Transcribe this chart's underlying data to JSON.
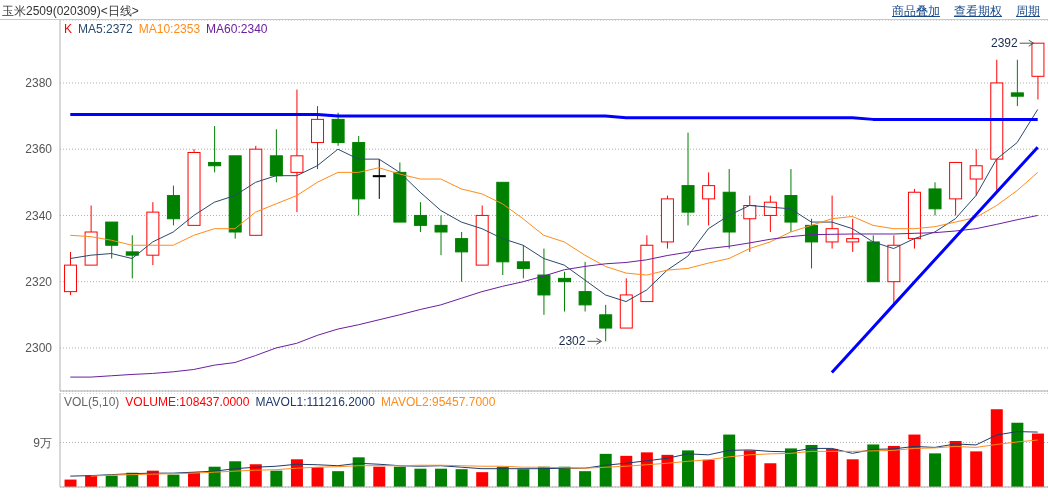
{
  "chart_data": [
    {
      "type": "candlestick",
      "title": "玉米2509(020309)<日线>",
      "categories": [
        null,
        null,
        null,
        null,
        null,
        null,
        null,
        null,
        null,
        null,
        null,
        null,
        null,
        null,
        null,
        null,
        null,
        null,
        null,
        null,
        null,
        null,
        null,
        null,
        null,
        null,
        null,
        null,
        null,
        null,
        null,
        null,
        null,
        null,
        null,
        null,
        null,
        null,
        null,
        null,
        null,
        null,
        null,
        null,
        null,
        null,
        null,
        null
      ],
      "ylim": [
        2287,
        2399
      ],
      "yticks": [
        2300,
        2320,
        2340,
        2360,
        2380
      ],
      "grid": "y",
      "legend": "top left",
      "tick_labels": "y",
      "annotations": [
        "商品叠加",
        "查看期权",
        "周期",
        "2392",
        "2302"
      ],
      "series": [
        {
          "name": "K",
          "ohlc": [
            [
              2317,
              2329,
              2316,
              2325
            ],
            [
              2325,
              2343,
              2325,
              2335
            ],
            [
              2338,
              2338,
              2327,
              2331
            ],
            [
              2329,
              2334,
              2321,
              2328
            ],
            [
              2328,
              2344,
              2325,
              2341
            ],
            [
              2346,
              2349,
              2337,
              2339
            ],
            [
              2337,
              2360,
              2337,
              2359
            ],
            [
              2356,
              2367,
              2353,
              2355
            ],
            [
              2358,
              2358,
              2333,
              2335
            ],
            [
              2334,
              2361,
              2334,
              2360
            ],
            [
              2358,
              2366,
              2350,
              2352
            ],
            [
              2353,
              2378,
              2341,
              2358
            ],
            [
              2362,
              2373,
              2354,
              2369
            ],
            [
              2369,
              2371,
              2361,
              2362
            ],
            [
              2362,
              2364,
              2340,
              2345
            ],
            [
              2352,
              2357,
              2345,
              2352
            ],
            [
              2353,
              2356,
              2338,
              2338
            ],
            [
              2340,
              2344,
              2335,
              2337
            ],
            [
              2337,
              2340,
              2328,
              2335
            ],
            [
              2333,
              2335,
              2320,
              2329
            ],
            [
              2325,
              2343,
              2325,
              2340
            ],
            [
              2350,
              2350,
              2322,
              2326
            ],
            [
              2326,
              2331,
              2321,
              2324
            ],
            [
              2322,
              2330,
              2310,
              2316
            ],
            [
              2321,
              2323,
              2311,
              2320
            ],
            [
              2317,
              2326,
              2311,
              2313
            ],
            [
              2310,
              2313,
              2302,
              2306
            ],
            [
              2306,
              2321,
              2306,
              2316
            ],
            [
              2314,
              2334,
              2314,
              2331
            ],
            [
              2332,
              2346,
              2330,
              2345
            ],
            [
              2349,
              2365,
              2337,
              2341
            ],
            [
              2345,
              2353,
              2337,
              2349
            ],
            [
              2347,
              2354,
              2330,
              2335
            ],
            [
              2339,
              2346,
              2329,
              2343
            ],
            [
              2340,
              2346,
              2335,
              2344
            ],
            [
              2346,
              2354,
              2335,
              2338
            ],
            [
              2337,
              2339,
              2324,
              2332
            ],
            [
              2332,
              2346,
              2330,
              2336
            ],
            [
              2332,
              2339,
              2329,
              2333
            ],
            [
              2332,
              2334,
              2320,
              2320
            ],
            [
              2320,
              2334,
              2313,
              2331
            ],
            [
              2333,
              2348,
              2330,
              2347
            ],
            [
              2348,
              2350,
              2340,
              2342
            ],
            [
              2345,
              2356,
              2340,
              2356
            ],
            [
              2351,
              2360,
              2346,
              2355
            ],
            [
              2357,
              2387,
              2347,
              2380
            ],
            [
              2377,
              2387,
              2373,
              2376
            ],
            [
              2382,
              2392,
              2375,
              2392
            ]
          ],
          "colors": [
            "#ff0000",
            "#ff0000",
            "#008000",
            "#008000",
            "#ff0000",
            "#008000",
            "#ff0000",
            "#008000",
            "#008000",
            "#ff0000",
            "#008000",
            "#ff0000",
            "#ff0000",
            "#008000",
            "#008000",
            "#000000",
            "#008000",
            "#008000",
            "#008000",
            "#008000",
            "#ff0000",
            "#008000",
            "#008000",
            "#008000",
            "#008000",
            "#008000",
            "#008000",
            "#ff0000",
            "#ff0000",
            "#ff0000",
            "#008000",
            "#ff0000",
            "#008000",
            "#ff0000",
            "#ff0000",
            "#008000",
            "#008000",
            "#ff0000",
            "#ff0000",
            "#008000",
            "#ff0000",
            "#ff0000",
            "#008000",
            "#ff0000",
            "#ff0000",
            "#ff0000",
            "#008000",
            "#ff0000"
          ]
        },
        {
          "type": "line",
          "name": "MA5:2372",
          "color": "#2b4a6b",
          "values": [
            2327,
            2328,
            2328.5,
            2327,
            2332,
            2335,
            2340,
            2344,
            2346,
            2350,
            2352,
            2352,
            2355,
            2360,
            2357,
            2357,
            2353,
            2347,
            2341.5,
            2338,
            2336,
            2333,
            2331,
            2327,
            2325,
            2320.5,
            2316,
            2314,
            2317.5,
            2323.5,
            2327.7,
            2336,
            2340,
            2343,
            2342.5,
            2342,
            2338,
            2338,
            2336,
            2332,
            2330,
            2333,
            2335,
            2339,
            2346,
            2357,
            2362,
            2372
          ]
        },
        {
          "type": "line",
          "name": "MA10:2353",
          "color": "#ff8c1a",
          "values": [
            2334,
            2333.6,
            2332.5,
            2331,
            2331,
            2331,
            2334,
            2336,
            2336,
            2341,
            2343.5,
            2346,
            2350,
            2353,
            2353,
            2354.4,
            2352.5,
            2351,
            2351,
            2348,
            2346.5,
            2343.5,
            2339,
            2334,
            2332,
            2328,
            2324.6,
            2322.6,
            2322,
            2323.5,
            2324,
            2325.6,
            2327,
            2330,
            2332,
            2335,
            2337,
            2339,
            2339.7,
            2337,
            2336,
            2336,
            2336.6,
            2338,
            2339.4,
            2343,
            2347.5,
            2353
          ]
        },
        {
          "type": "line",
          "name": "MA60:2340",
          "color": "#6a1fa0",
          "values": [
            2291.2,
            2291.2,
            2291.6,
            2292,
            2292.3,
            2292.8,
            2293.5,
            2294.8,
            2295.6,
            2297.7,
            2300,
            2301.4,
            2303.8,
            2305.7,
            2307,
            2308.5,
            2310,
            2311.6,
            2313,
            2315,
            2317,
            2318.6,
            2320,
            2321.7,
            2323.6,
            2324.6,
            2325.4,
            2325.8,
            2326.6,
            2327.9,
            2328.9,
            2330,
            2330.7,
            2331.7,
            2332.8,
            2333.6,
            2334.2,
            2334.3,
            2334.4,
            2334.4,
            2334.4,
            2334.6,
            2334.8,
            2335.3,
            2336,
            2337.3,
            2338.7,
            2340
          ]
        },
        {
          "type": "line",
          "color": "#0000ff",
          "values": [
            2370.5,
            2370.5,
            2370.5,
            2370.5,
            2370.5,
            2370.5,
            2370.5,
            2370.5,
            2370.5,
            2370.5,
            2370.5,
            2370.5,
            2370.5,
            2370,
            2370,
            2370,
            2370,
            2370,
            2370,
            2370,
            2370,
            2370,
            2370,
            2370,
            2370,
            2370,
            2370,
            2369.5,
            2369.5,
            2369.5,
            2369.5,
            2369.5,
            2369.5,
            2369.5,
            2369.5,
            2369.5,
            2369.5,
            2369.5,
            2369.5,
            2369,
            2369,
            2369,
            2369,
            2369,
            2369,
            2369,
            2369,
            2369
          ]
        },
        {
          "type": "line",
          "color": "#0000ff",
          "values": [
            null,
            null,
            null,
            null,
            null,
            null,
            null,
            null,
            null,
            null,
            null,
            null,
            null,
            null,
            null,
            null,
            null,
            null,
            null,
            null,
            null,
            null,
            null,
            null,
            null,
            null,
            null,
            null,
            null,
            null,
            null,
            null,
            null,
            null,
            null,
            null,
            null,
            2292.6,
            2299.4,
            2306.2,
            2313,
            2319.8,
            2326.6,
            2333.4,
            2340.2,
            2347,
            2353.8,
            2360.6
          ]
        }
      ]
    },
    {
      "type": "bar",
      "legend_title": "VOL(5,10)",
      "categories": [
        null,
        null,
        null,
        null,
        null,
        null,
        null,
        null,
        null,
        null,
        null,
        null,
        null,
        null,
        null,
        null,
        null,
        null,
        null,
        null,
        null,
        null,
        null,
        null,
        null,
        null,
        null,
        null,
        null,
        null,
        null,
        null,
        null,
        null,
        null,
        null,
        null,
        null,
        null,
        null,
        null,
        null,
        null,
        null,
        null,
        null,
        null,
        null
      ],
      "ylim": [
        0,
        19
      ],
      "yticks": [
        {
          "value": 9,
          "label": "9万"
        }
      ],
      "grid": "y",
      "legend": "top left",
      "tick_labels": "y",
      "series": [
        {
          "name": "VOLUME:108437.0000",
          "values": [
            1.5,
            2.3,
            2.3,
            2.9,
            3.3,
            2.5,
            3.0,
            4.1,
            5.2,
            4.6,
            3.3,
            5.6,
            4.0,
            3.2,
            6.0,
            4.1,
            4.1,
            3.7,
            3.7,
            3.6,
            3.0,
            4.1,
            3.6,
            4.1,
            4.1,
            3.2,
            6.7,
            6.3,
            7.0,
            6.5,
            7.4,
            5.5,
            10.6,
            7.4,
            4.8,
            7.8,
            8.5,
            7.7,
            5.6,
            8.6,
            8.3,
            10.6,
            6.8,
            9.3,
            7.2,
            15.7,
            13.0,
            10.8
          ],
          "colors": [
            "#ff0000",
            "#ff0000",
            "#008000",
            "#008000",
            "#ff0000",
            "#008000",
            "#ff0000",
            "#008000",
            "#008000",
            "#ff0000",
            "#008000",
            "#ff0000",
            "#ff0000",
            "#008000",
            "#008000",
            "#ff0000",
            "#008000",
            "#008000",
            "#008000",
            "#008000",
            "#ff0000",
            "#008000",
            "#008000",
            "#008000",
            "#008000",
            "#008000",
            "#008000",
            "#ff0000",
            "#ff0000",
            "#ff0000",
            "#008000",
            "#ff0000",
            "#008000",
            "#ff0000",
            "#ff0000",
            "#008000",
            "#008000",
            "#ff0000",
            "#ff0000",
            "#008000",
            "#ff0000",
            "#ff0000",
            "#008000",
            "#ff0000",
            "#ff0000",
            "#ff0000",
            "#008000",
            "#ff0000"
          ]
        },
        {
          "type": "line",
          "name": "MAVOL1:111216.2000",
          "color": "#1f3a6b",
          "values": [
            2.2,
            2.3,
            2.5,
            2.7,
            2.8,
            2.8,
            3.0,
            3.2,
            3.7,
            4.0,
            4.2,
            4.6,
            4.5,
            4.3,
            4.8,
            4.6,
            4.3,
            4.2,
            4.3,
            4.0,
            3.7,
            3.7,
            3.7,
            3.7,
            3.8,
            3.8,
            4.4,
            4.8,
            5.3,
            5.8,
            6.7,
            6.5,
            7.4,
            7.5,
            7.2,
            7.1,
            7.8,
            7.8,
            6.8,
            7.6,
            7.7,
            8.2,
            8.0,
            8.7,
            8.5,
            10.5,
            11.2,
            11.1
          ]
        },
        {
          "type": "line",
          "name": "MAVOL2:95457.7000",
          "color": "#ff8c1a",
          "values": [
            null,
            2.2,
            2.4,
            2.5,
            2.6,
            2.7,
            2.8,
            3.0,
            3.2,
            3.4,
            3.5,
            3.8,
            4.0,
            4.1,
            4.3,
            4.3,
            4.3,
            4.4,
            4.4,
            4.3,
            4.2,
            4.2,
            4.0,
            4.0,
            3.9,
            3.8,
            4.0,
            4.2,
            4.5,
            4.8,
            5.2,
            5.5,
            6.1,
            6.5,
            6.7,
            6.8,
            7.2,
            7.2,
            7.2,
            7.3,
            7.4,
            7.8,
            7.9,
            8.2,
            8.0,
            8.6,
            9.1,
            9.5
          ]
        }
      ]
    }
  ]
}
